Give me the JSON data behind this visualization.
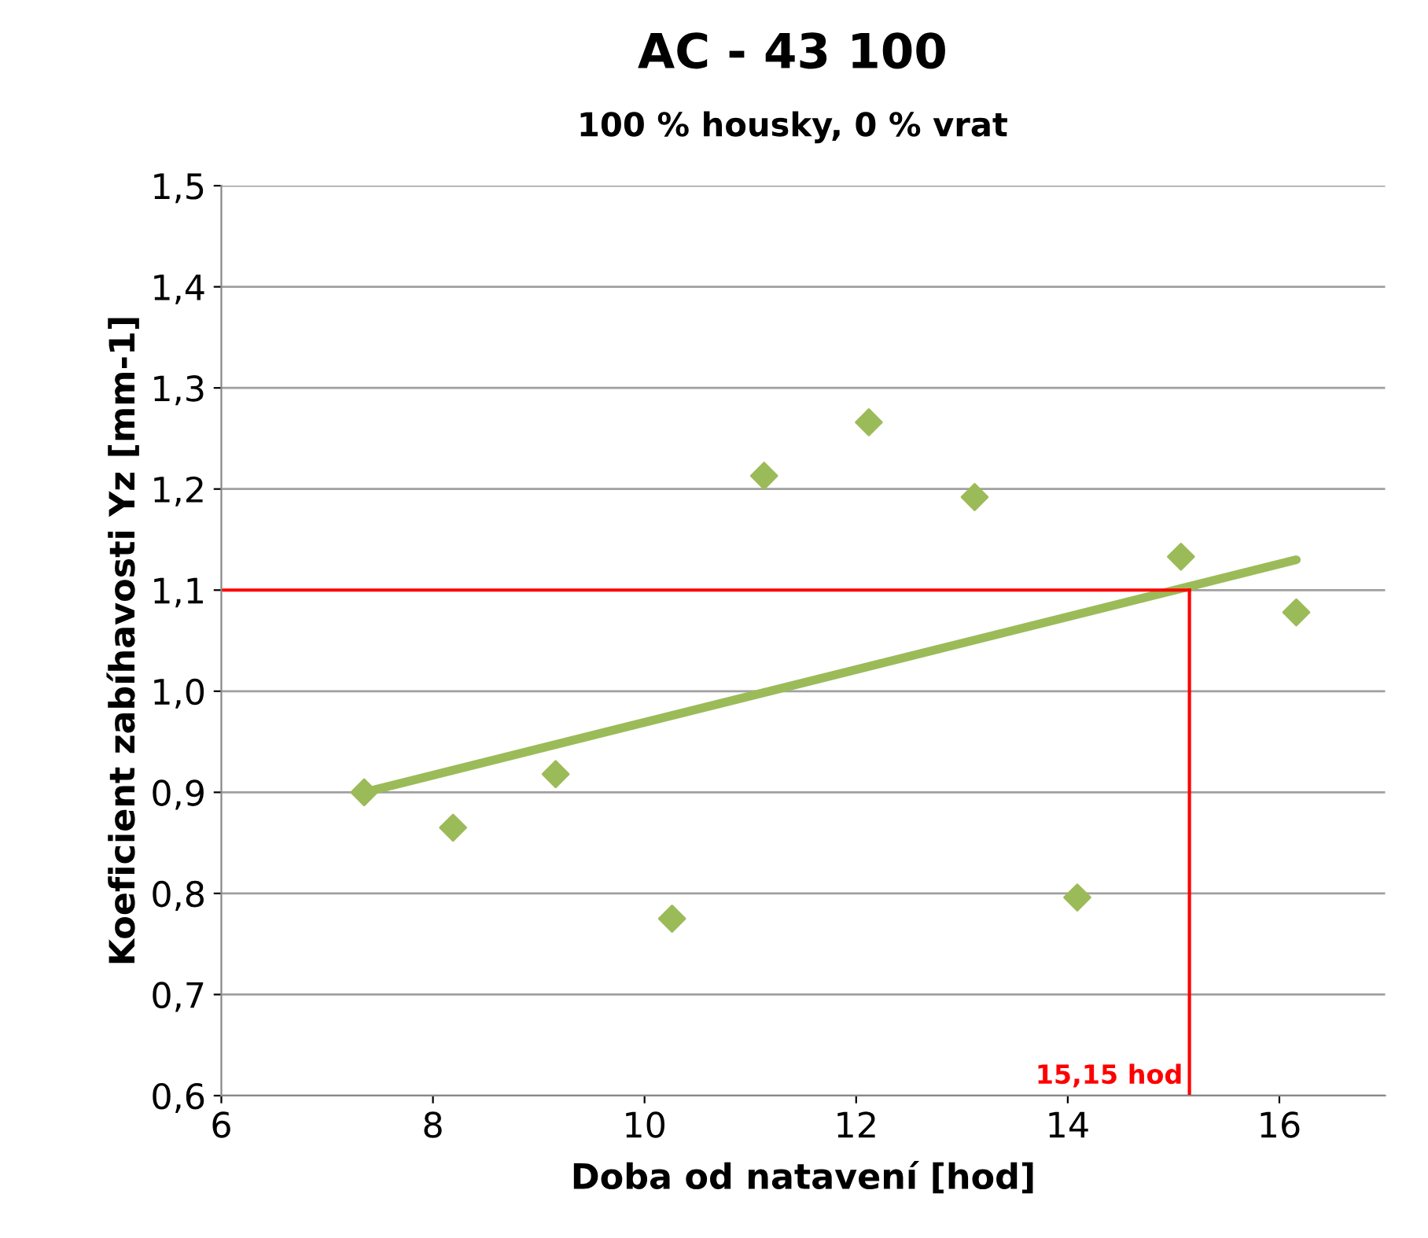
{
  "chart_data": {
    "type": "scatter",
    "title": "AC - 43 100",
    "subtitle": "100 % housky, 0 % vrat",
    "xlabel": "Doba od natavení [hod]",
    "ylabel": "Koeficient zabíhavosti Yz [mm-1]",
    "series": [
      {
        "color": "#9bbb59",
        "marker": "diamond",
        "x": [
          7.35,
          8.19,
          9.16,
          10.26,
          11.13,
          12.12,
          13.12,
          14.09,
          15.07,
          16.16
        ],
        "values": [
          0.9,
          0.865,
          0.918,
          0.775,
          1.213,
          1.266,
          1.192,
          0.796,
          1.133,
          1.078
        ]
      },
      {
        "type": "line",
        "color": "#9bbb59",
        "marker": "none",
        "line_style": "solid",
        "x": [
          7.35,
          16.16
        ],
        "values": [
          0.9,
          1.13
        ]
      }
    ],
    "xlim": [
      6,
      17
    ],
    "xticks": [
      {
        "value": 6,
        "label": "6"
      },
      {
        "value": 8,
        "label": "8"
      },
      {
        "value": 10,
        "label": "10"
      },
      {
        "value": 12,
        "label": "12"
      },
      {
        "value": 14,
        "label": "14"
      },
      {
        "value": 16,
        "label": "16"
      }
    ],
    "ylim": [
      0.6,
      1.5
    ],
    "yticks": [
      {
        "value": 0.6,
        "label": "0,6"
      },
      {
        "value": 0.7,
        "label": "0,7"
      },
      {
        "value": 0.8,
        "label": "0,8"
      },
      {
        "value": 0.9,
        "label": "0,9"
      },
      {
        "value": 1.0,
        "label": "1,0"
      },
      {
        "value": 1.1,
        "label": "1,1"
      },
      {
        "value": 1.2,
        "label": "1,2"
      },
      {
        "value": 1.3,
        "label": "1,3"
      },
      {
        "value": 1.4,
        "label": "1,4"
      },
      {
        "value": 1.5,
        "label": "1,5"
      }
    ],
    "grid": "y",
    "legend": false,
    "ref_lines": [
      {
        "axis": "y",
        "value": 1.1,
        "color": "#ff0000",
        "line_style": "solid"
      },
      {
        "axis": "x",
        "value": 15.15,
        "label": "15,15 hod",
        "color": "#ff0000",
        "line_style": "solid"
      }
    ]
  }
}
